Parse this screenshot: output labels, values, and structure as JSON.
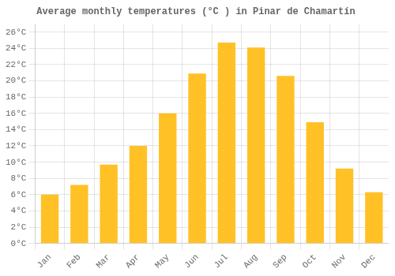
{
  "chart_data": {
    "type": "bar",
    "title": "Average monthly temperatures (°C ) in Pinar de Chamartín",
    "categories": [
      "Jan",
      "Feb",
      "Mar",
      "Apr",
      "May",
      "Jun",
      "Jul",
      "Aug",
      "Sep",
      "Oct",
      "Nov",
      "Dec"
    ],
    "values": [
      6.0,
      7.2,
      9.7,
      12.0,
      16.0,
      20.9,
      24.7,
      24.1,
      20.6,
      14.9,
      9.2,
      6.3
    ],
    "color": "#FFC125",
    "ylim": [
      0,
      27
    ],
    "yticks": [
      {
        "value": 0,
        "label": "0°C"
      },
      {
        "value": 2,
        "label": "2°C"
      },
      {
        "value": 4,
        "label": "4°C"
      },
      {
        "value": 6,
        "label": "6°C"
      },
      {
        "value": 8,
        "label": "8°C"
      },
      {
        "value": 10,
        "label": "10°C"
      },
      {
        "value": 12,
        "label": "12°C"
      },
      {
        "value": 14,
        "label": "14°C"
      },
      {
        "value": 16,
        "label": "16°C"
      },
      {
        "value": 18,
        "label": "18°C"
      },
      {
        "value": 20,
        "label": "20°C"
      },
      {
        "value": 22,
        "label": "22°C"
      },
      {
        "value": 24,
        "label": "24°C"
      },
      {
        "value": 26,
        "label": "26°C"
      }
    ],
    "grid": true
  }
}
